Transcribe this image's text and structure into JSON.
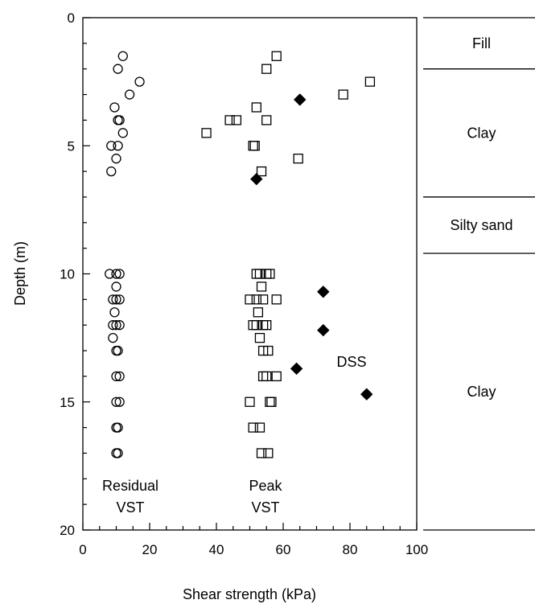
{
  "chart_data": {
    "type": "scatter",
    "title": "",
    "xlabel": "Shear strength (kPa)",
    "ylabel": "Depth (m)",
    "xlim": [
      0,
      100
    ],
    "ylim": [
      0,
      20
    ],
    "y_inverted": true,
    "grid": false,
    "x_ticks": [
      "0",
      "20",
      "40",
      "60",
      "80",
      "100"
    ],
    "y_ticks": [
      "0",
      "5",
      "10",
      "15",
      "20"
    ],
    "annotations": {
      "residual_line1": "Residual",
      "residual_line2": "VST",
      "peak_line1": "Peak",
      "peak_line2": "VST",
      "dss": "DSS"
    },
    "series": [
      {
        "marker": "circle-open",
        "points": [
          [
            12,
            1.5
          ],
          [
            10.5,
            2
          ],
          [
            17,
            2.5
          ],
          [
            14,
            3
          ],
          [
            9.5,
            3.5
          ],
          [
            10.5,
            4
          ],
          [
            11,
            4
          ],
          [
            12,
            4.5
          ],
          [
            8.5,
            5
          ],
          [
            10.5,
            5
          ],
          [
            10,
            5.5
          ],
          [
            8.5,
            6
          ],
          [
            8,
            10
          ],
          [
            10,
            10
          ],
          [
            11,
            10
          ],
          [
            10,
            10.5
          ],
          [
            9,
            11
          ],
          [
            10,
            11
          ],
          [
            11,
            11
          ],
          [
            9.5,
            11.5
          ],
          [
            9,
            12
          ],
          [
            10,
            12
          ],
          [
            11,
            12
          ],
          [
            9,
            12.5
          ],
          [
            10,
            13
          ],
          [
            10.5,
            13
          ],
          [
            10,
            14
          ],
          [
            11,
            14
          ],
          [
            10,
            15
          ],
          [
            11,
            15
          ],
          [
            10,
            16
          ],
          [
            10.5,
            16
          ],
          [
            10,
            17
          ],
          [
            10.5,
            17
          ]
        ]
      },
      {
        "marker": "square-open",
        "points": [
          [
            58,
            1.5
          ],
          [
            55,
            2
          ],
          [
            86,
            2.5
          ],
          [
            78,
            3
          ],
          [
            52,
            3.5
          ],
          [
            44,
            4
          ],
          [
            46,
            4
          ],
          [
            55,
            4
          ],
          [
            37,
            4.5
          ],
          [
            51,
            5
          ],
          [
            51.5,
            5
          ],
          [
            64.5,
            5.5
          ],
          [
            53.5,
            6
          ],
          [
            52,
            10
          ],
          [
            53,
            10
          ],
          [
            55,
            10
          ],
          [
            56,
            10
          ],
          [
            53.5,
            10.5
          ],
          [
            50,
            11
          ],
          [
            52,
            11
          ],
          [
            54,
            11
          ],
          [
            58,
            11
          ],
          [
            52.5,
            11.5
          ],
          [
            51,
            12
          ],
          [
            52,
            12
          ],
          [
            54,
            12
          ],
          [
            55,
            12
          ],
          [
            53,
            12.5
          ],
          [
            54,
            13
          ],
          [
            55.5,
            13
          ],
          [
            54,
            14
          ],
          [
            55,
            14
          ],
          [
            58,
            14
          ],
          [
            50,
            15
          ],
          [
            56,
            15
          ],
          [
            56.5,
            15
          ],
          [
            51,
            16
          ],
          [
            53,
            16
          ],
          [
            53.5,
            17
          ],
          [
            55.5,
            17
          ]
        ]
      },
      {
        "marker": "diamond-filled",
        "points": [
          [
            65,
            3.2
          ],
          [
            52,
            6.3
          ],
          [
            72,
            10.7
          ],
          [
            72,
            12.2
          ],
          [
            64,
            13.7
          ],
          [
            85,
            14.7
          ]
        ]
      }
    ]
  },
  "soil_profile": {
    "layers": [
      {
        "label": "Fill",
        "top": 0,
        "bottom": 2
      },
      {
        "label": "Clay",
        "top": 2,
        "bottom": 7
      },
      {
        "label": "Silty sand",
        "top": 7,
        "bottom": 9.2
      },
      {
        "label": "Clay",
        "top": 9.2,
        "bottom": 20
      }
    ]
  }
}
